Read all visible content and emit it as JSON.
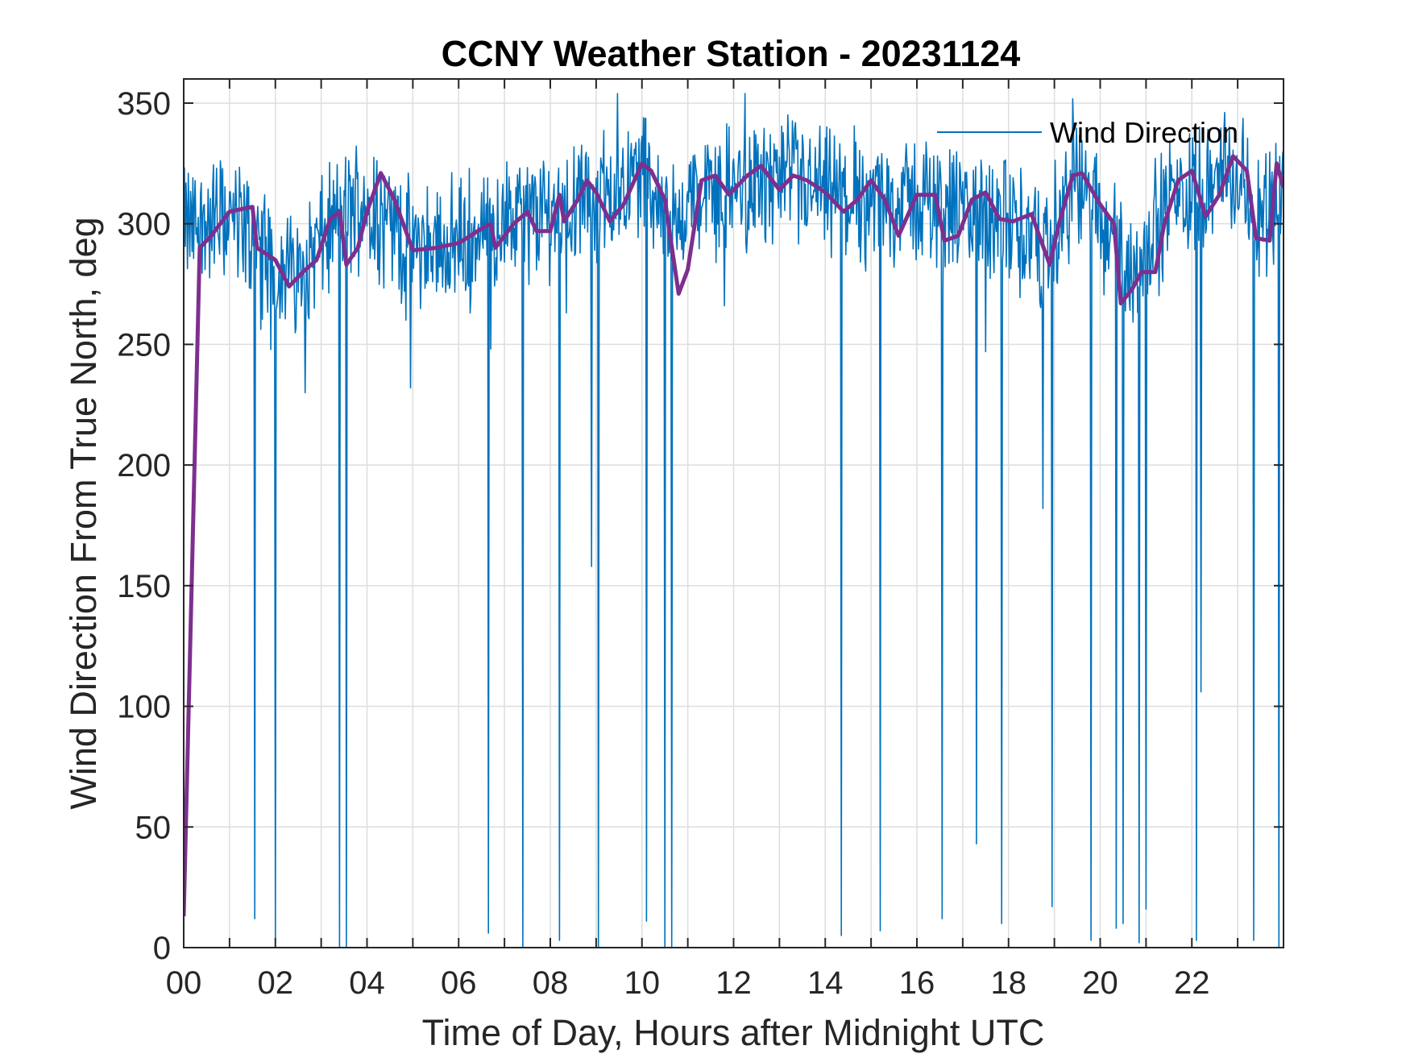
{
  "chart_data": {
    "type": "line",
    "title": "CCNY Weather Station - 20231124",
    "xlabel": "Time of Day, Hours after Midnight UTC",
    "ylabel": "Wind Direction From True North, deg",
    "xlim": [
      0,
      24
    ],
    "ylim": [
      0,
      360
    ],
    "grid": true,
    "legend_position": "top-right",
    "x_ticks": [
      0,
      2,
      4,
      6,
      8,
      10,
      12,
      14,
      16,
      18,
      20,
      22
    ],
    "x_tick_labels": [
      "00",
      "02",
      "04",
      "06",
      "08",
      "10",
      "12",
      "14",
      "16",
      "18",
      "20",
      "22"
    ],
    "y_ticks": [
      0,
      50,
      100,
      150,
      200,
      250,
      300,
      350
    ],
    "y_tick_labels": [
      "0",
      "50",
      "100",
      "150",
      "200",
      "250",
      "300",
      "350"
    ],
    "colors": {
      "raw": "#0072BD",
      "smoothed": "#7E2F8E",
      "grid": "#dedede",
      "axis": "#262626"
    },
    "series": [
      {
        "name": "Wind Direction",
        "description_shown": "raw samples",
        "baseline_points": [
          [
            0,
            298
          ],
          [
            0.5,
            300
          ],
          [
            1,
            303
          ],
          [
            1.5,
            295
          ],
          [
            2,
            282
          ],
          [
            2.5,
            280
          ],
          [
            3,
            293
          ],
          [
            3.5,
            303
          ],
          [
            4,
            312
          ],
          [
            4.5,
            300
          ],
          [
            5,
            290
          ],
          [
            6,
            293
          ],
          [
            7,
            300
          ],
          [
            8,
            305
          ],
          [
            9,
            310
          ],
          [
            10,
            322
          ],
          [
            10.7,
            300
          ],
          [
            11,
            310
          ],
          [
            12,
            315
          ],
          [
            13,
            318
          ],
          [
            14,
            312
          ],
          [
            15,
            308
          ],
          [
            16,
            310
          ],
          [
            17,
            304
          ],
          [
            18,
            300
          ],
          [
            18.8,
            290
          ],
          [
            19.5,
            315
          ],
          [
            20.2,
            300
          ],
          [
            20.6,
            280
          ],
          [
            21,
            290
          ],
          [
            21.5,
            310
          ],
          [
            22,
            315
          ],
          [
            22.5,
            322
          ],
          [
            23,
            318
          ],
          [
            23.5,
            305
          ],
          [
            24,
            315
          ]
        ],
        "spikes": [
          [
            1.55,
            12
          ],
          [
            2.0,
            2
          ],
          [
            2.65,
            230
          ],
          [
            3.4,
            0
          ],
          [
            3.55,
            0
          ],
          [
            4.95,
            232
          ],
          [
            6.65,
            6
          ],
          [
            7.4,
            0
          ],
          [
            8.2,
            3
          ],
          [
            8.9,
            158
          ],
          [
            9.05,
            0
          ],
          [
            10.1,
            11
          ],
          [
            10.5,
            0
          ],
          [
            10.65,
            0
          ],
          [
            11.8,
            266
          ],
          [
            14.35,
            5
          ],
          [
            15.2,
            7
          ],
          [
            16.55,
            12
          ],
          [
            17.3,
            43
          ],
          [
            17.5,
            247
          ],
          [
            17.85,
            10
          ],
          [
            18.75,
            182
          ],
          [
            18.95,
            17
          ],
          [
            19.8,
            3
          ],
          [
            20.35,
            8
          ],
          [
            20.5,
            10
          ],
          [
            20.85,
            2
          ],
          [
            21.0,
            16
          ],
          [
            22.1,
            3
          ],
          [
            22.2,
            106
          ],
          [
            23.35,
            3
          ],
          [
            23.9,
            0
          ]
        ]
      },
      {
        "name": "Smoothed",
        "points": [
          [
            0,
            13
          ],
          [
            0.35,
            290
          ],
          [
            0.6,
            295
          ],
          [
            1.0,
            305
          ],
          [
            1.5,
            307
          ],
          [
            1.6,
            290
          ],
          [
            2.0,
            285
          ],
          [
            2.3,
            274
          ],
          [
            2.6,
            280
          ],
          [
            2.9,
            285
          ],
          [
            3.2,
            302
          ],
          [
            3.4,
            305
          ],
          [
            3.55,
            283
          ],
          [
            3.8,
            290
          ],
          [
            4.0,
            305
          ],
          [
            4.3,
            321
          ],
          [
            4.6,
            310
          ],
          [
            5.0,
            289
          ],
          [
            5.5,
            290
          ],
          [
            6.0,
            292
          ],
          [
            6.5,
            298
          ],
          [
            6.7,
            300
          ],
          [
            6.8,
            290
          ],
          [
            7.2,
            300
          ],
          [
            7.5,
            305
          ],
          [
            7.7,
            297
          ],
          [
            8.0,
            297
          ],
          [
            8.2,
            312
          ],
          [
            8.3,
            301
          ],
          [
            8.6,
            310
          ],
          [
            8.8,
            318
          ],
          [
            9.0,
            313
          ],
          [
            9.3,
            301
          ],
          [
            9.6,
            308
          ],
          [
            10.0,
            325
          ],
          [
            10.2,
            322
          ],
          [
            10.5,
            310
          ],
          [
            10.8,
            271
          ],
          [
            11.0,
            281
          ],
          [
            11.3,
            318
          ],
          [
            11.6,
            320
          ],
          [
            11.9,
            312
          ],
          [
            12.3,
            320
          ],
          [
            12.6,
            324
          ],
          [
            13.0,
            314
          ],
          [
            13.3,
            320
          ],
          [
            13.6,
            318
          ],
          [
            14.0,
            313
          ],
          [
            14.4,
            305
          ],
          [
            14.7,
            310
          ],
          [
            15.0,
            318
          ],
          [
            15.3,
            310
          ],
          [
            15.6,
            295
          ],
          [
            16.0,
            312
          ],
          [
            16.4,
            312
          ],
          [
            16.6,
            293
          ],
          [
            16.9,
            295
          ],
          [
            17.2,
            310
          ],
          [
            17.5,
            313
          ],
          [
            17.8,
            302
          ],
          [
            18.1,
            301
          ],
          [
            18.5,
            304
          ],
          [
            18.9,
            283
          ],
          [
            19.1,
            300
          ],
          [
            19.4,
            320
          ],
          [
            19.6,
            321
          ],
          [
            20.0,
            308
          ],
          [
            20.3,
            300
          ],
          [
            20.45,
            267
          ],
          [
            20.7,
            273
          ],
          [
            20.9,
            280
          ],
          [
            21.2,
            280
          ],
          [
            21.4,
            300
          ],
          [
            21.7,
            318
          ],
          [
            22.0,
            322
          ],
          [
            22.3,
            303
          ],
          [
            22.6,
            312
          ],
          [
            22.9,
            328
          ],
          [
            23.2,
            322
          ],
          [
            23.4,
            294
          ],
          [
            23.7,
            293
          ],
          [
            23.85,
            325
          ],
          [
            24.0,
            315
          ]
        ]
      }
    ]
  }
}
